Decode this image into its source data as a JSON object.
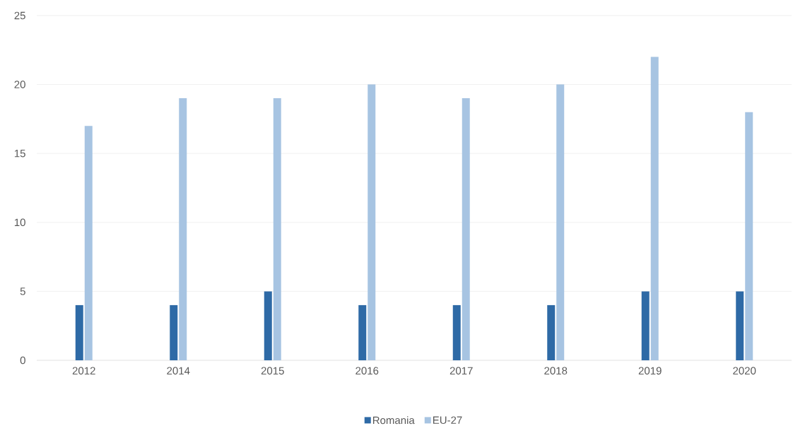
{
  "chart_data": {
    "type": "bar",
    "categories": [
      "2012",
      "2014",
      "2015",
      "2016",
      "2017",
      "2018",
      "2019",
      "2020"
    ],
    "series": [
      {
        "name": "Romania",
        "color": "#2e6aa6",
        "values": [
          4,
          4,
          5,
          4,
          4,
          4,
          5,
          5
        ]
      },
      {
        "name": "EU-27",
        "color": "#a7c4e2",
        "values": [
          17,
          19,
          19,
          20,
          19,
          20,
          22,
          18
        ]
      }
    ],
    "ylim": [
      0,
      25
    ],
    "yticks": [
      0,
      5,
      10,
      15,
      20,
      25
    ],
    "grid": "y",
    "legend": "bottom"
  }
}
